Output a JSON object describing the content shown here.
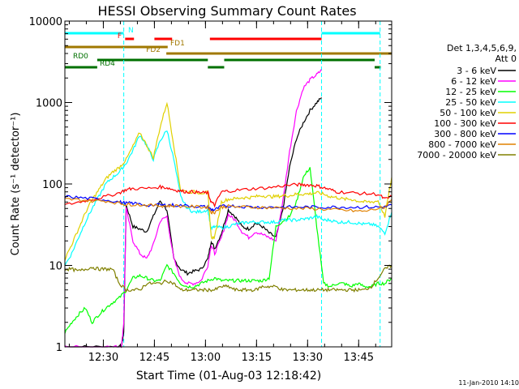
{
  "chart_data": {
    "type": "line",
    "title": "HESSI Observing Summary Count Rates",
    "xlabel": "Start Time (01-Aug-03 12:18:42)",
    "ylabel": "Count Rate (s⁻¹ detector⁻¹)",
    "yscale": "log",
    "ylim": [
      1,
      10000
    ],
    "xlim_minutes": [
      0,
      96
    ],
    "x_ticks": [
      {
        "label": "12:30",
        "minute": 11.3
      },
      {
        "label": "12:45",
        "minute": 26.3
      },
      {
        "label": "13:00",
        "minute": 41.3
      },
      {
        "label": "13:15",
        "minute": 56.3
      },
      {
        "label": "13:30",
        "minute": 71.3
      },
      {
        "label": "13:45",
        "minute": 86.3
      }
    ],
    "y_tick_labels": [
      "1",
      "10",
      "100",
      "1000",
      "10000"
    ],
    "y_tick_values": [
      1,
      10,
      100,
      1000,
      10000
    ],
    "legend_header": [
      "Det 1,3,4,5,6,9,",
      "Att 0"
    ],
    "legend_position": "right",
    "timestamp": "11-Jan-2010 14:10",
    "vertical_markers_minutes": [
      17.3,
      75.4,
      92.6
    ],
    "flag_bars": [
      {
        "label": "N",
        "color": "#00ffff",
        "row": 0,
        "segments": [
          [
            0,
            17.3
          ],
          [
            75.4,
            92.6
          ]
        ]
      },
      {
        "label": "F",
        "color": "#ff0000",
        "row": 1,
        "segments": [
          [
            17.7,
            20.3
          ],
          [
            26.3,
            31.5
          ],
          [
            42.6,
            75.4
          ]
        ]
      },
      {
        "label": "FD1",
        "color": "#a07800",
        "row": 2,
        "segments": [
          [
            0,
            30.2
          ]
        ]
      },
      {
        "label": "FD2",
        "color": "#a07800",
        "row": 3,
        "segments": [
          [
            29.8,
            96
          ]
        ]
      },
      {
        "label": "RD0",
        "color": "#007000",
        "row": 4,
        "segments": [
          [
            9.5,
            42.0
          ],
          [
            46.8,
            91.0
          ]
        ]
      },
      {
        "label": "RD4",
        "color": "#007000",
        "row": 5,
        "segments": [
          [
            0,
            9.5
          ],
          [
            42.0,
            46.8
          ],
          [
            91.0,
            92.8
          ]
        ]
      }
    ],
    "series": [
      {
        "name": "3 - 6 keV",
        "color": "#000000",
        "x": [
          0,
          5,
          10,
          15,
          16.6,
          17.3,
          18,
          20,
          22,
          24,
          26,
          28,
          30,
          32,
          34,
          36,
          38,
          40,
          42,
          43,
          44,
          46,
          48,
          50,
          52,
          54,
          56,
          58,
          60,
          62,
          64,
          66,
          68,
          70,
          72,
          74,
          75.4
        ],
        "y": [
          1,
          1,
          1,
          1,
          1,
          1.5,
          55,
          30,
          28,
          26,
          40,
          62,
          48,
          12,
          9,
          8,
          8.5,
          9,
          12,
          20,
          16,
          25,
          48,
          40,
          30,
          28,
          33,
          30,
          25,
          22,
          48,
          160,
          360,
          560,
          800,
          1000,
          1150
        ]
      },
      {
        "name": "6 - 12 keV",
        "color": "#ff00ff",
        "x": [
          0,
          5,
          10,
          15,
          16.6,
          17.3,
          18,
          20,
          22,
          24,
          26,
          28,
          30,
          32,
          34,
          36,
          38,
          40,
          42,
          43,
          44,
          46,
          48,
          50,
          52,
          54,
          56,
          58,
          60,
          62,
          64,
          66,
          68,
          70,
          72,
          74,
          75.4
        ],
        "y": [
          1,
          1,
          1,
          1,
          1,
          2,
          50,
          20,
          14,
          12,
          18,
          35,
          40,
          12,
          7,
          6,
          6,
          6.5,
          10,
          18,
          14,
          22,
          42,
          36,
          26,
          22,
          26,
          24,
          22,
          20,
          60,
          250,
          780,
          1500,
          1900,
          2200,
          2500
        ]
      },
      {
        "name": "12 - 25 keV",
        "color": "#00ff00",
        "x": [
          0,
          2,
          4,
          6,
          8,
          10,
          12,
          14,
          16,
          18,
          20,
          22,
          24,
          26,
          28,
          30,
          32,
          34,
          36,
          38,
          40,
          42,
          44,
          46,
          48,
          50,
          52,
          54,
          56,
          58,
          60,
          62,
          64,
          66,
          68,
          70,
          72,
          74,
          76,
          78,
          80,
          82,
          84,
          86,
          88,
          90,
          92,
          94,
          96
        ],
        "y": [
          1.5,
          2,
          2.5,
          3,
          2,
          2.5,
          3,
          3.5,
          4,
          5,
          7,
          7.5,
          7,
          6.5,
          6.5,
          10,
          8,
          6,
          5.5,
          5.5,
          6,
          6.5,
          7,
          6.5,
          6.5,
          6.5,
          6.5,
          6.5,
          6.5,
          6.5,
          7,
          30,
          35,
          40,
          60,
          120,
          160,
          30,
          6,
          5.5,
          6,
          6,
          5.5,
          6,
          5.5,
          5.5,
          6,
          6,
          7
        ]
      },
      {
        "name": "25 - 50 keV",
        "color": "#00ffff",
        "x": [
          0,
          2,
          4,
          6,
          8,
          10,
          12,
          14,
          16,
          18,
          20,
          22,
          24,
          26,
          28,
          30,
          32,
          34,
          36,
          38,
          40,
          42,
          43,
          44,
          46,
          48,
          50,
          52,
          54,
          56,
          58,
          60,
          62,
          64,
          66,
          68,
          70,
          72,
          74,
          76,
          78,
          80,
          82,
          84,
          86,
          88,
          90,
          92,
          94,
          96
        ],
        "y": [
          10,
          14,
          22,
          34,
          50,
          70,
          100,
          120,
          140,
          180,
          260,
          400,
          300,
          200,
          340,
          460,
          200,
          70,
          50,
          45,
          46,
          48,
          28,
          30,
          29,
          30,
          32,
          33,
          34,
          34,
          34,
          34,
          34,
          36,
          36,
          36,
          37,
          38,
          40,
          36,
          36,
          34,
          34,
          34,
          33,
          32,
          32,
          30,
          25,
          45
        ]
      },
      {
        "name": "50 - 100 keV",
        "color": "#e0d000",
        "x": [
          0,
          2,
          4,
          6,
          8,
          10,
          12,
          14,
          16,
          18,
          20,
          22,
          24,
          26,
          28,
          30,
          32,
          34,
          36,
          38,
          40,
          42,
          43,
          44,
          46,
          48,
          50,
          52,
          54,
          56,
          58,
          60,
          62,
          64,
          66,
          68,
          70,
          72,
          74,
          76,
          78,
          80,
          82,
          84,
          86,
          88,
          90,
          92,
          94,
          96
        ],
        "y": [
          12,
          18,
          28,
          44,
          64,
          85,
          115,
          140,
          160,
          200,
          290,
          430,
          300,
          210,
          500,
          1000,
          300,
          85,
          80,
          80,
          78,
          78,
          22,
          22,
          60,
          65,
          66,
          68,
          68,
          70,
          72,
          70,
          70,
          72,
          72,
          75,
          75,
          76,
          78,
          75,
          70,
          68,
          65,
          65,
          62,
          60,
          60,
          62,
          40,
          120
        ]
      },
      {
        "name": "100 - 300 keV",
        "color": "#ff0000",
        "x": [
          0,
          4,
          8,
          12,
          16,
          18,
          20,
          24,
          28,
          30,
          32,
          34,
          36,
          38,
          40,
          42,
          43,
          44,
          46,
          48,
          52,
          56,
          60,
          64,
          68,
          70,
          72,
          74,
          76,
          78,
          80,
          84,
          88,
          92,
          94,
          96
        ],
        "y": [
          55,
          60,
          65,
          70,
          78,
          85,
          88,
          88,
          92,
          90,
          85,
          82,
          80,
          80,
          78,
          78,
          60,
          55,
          80,
          82,
          85,
          88,
          90,
          95,
          98,
          98,
          97,
          95,
          90,
          85,
          80,
          78,
          76,
          75,
          65,
          70
        ]
      },
      {
        "name": "300 - 800 keV",
        "color": "#0000ff",
        "x": [
          0,
          4,
          8,
          12,
          16,
          18,
          20,
          24,
          28,
          30,
          32,
          36,
          40,
          42,
          43,
          44,
          46,
          48,
          52,
          56,
          60,
          64,
          68,
          72,
          76,
          80,
          84,
          88,
          92,
          94,
          96
        ],
        "y": [
          70,
          68,
          66,
          64,
          60,
          58,
          58,
          55,
          55,
          55,
          55,
          54,
          53,
          52,
          48,
          48,
          53,
          54,
          53,
          52,
          52,
          52,
          52,
          52,
          52,
          52,
          52,
          52,
          52,
          52,
          55
        ]
      },
      {
        "name": "800 - 7000 keV",
        "color": "#e08000",
        "x": [
          0,
          4,
          8,
          12,
          16,
          18,
          20,
          24,
          28,
          30,
          32,
          36,
          40,
          42,
          43,
          44,
          46,
          48,
          52,
          56,
          60,
          64,
          68,
          72,
          76,
          80,
          84,
          88,
          92,
          94,
          96
        ],
        "y": [
          65,
          64,
          62,
          62,
          58,
          56,
          56,
          55,
          54,
          54,
          54,
          53,
          52,
          52,
          45,
          45,
          52,
          53,
          52,
          52,
          51,
          51,
          50,
          50,
          49,
          48,
          47,
          46,
          50,
          52,
          65
        ]
      },
      {
        "name": "7000 - 20000 keV",
        "color": "#808000",
        "x": [
          0,
          2,
          4,
          6,
          8,
          10,
          12,
          14,
          16,
          18,
          20,
          22,
          24,
          26,
          28,
          30,
          32,
          34,
          36,
          38,
          40,
          42,
          44,
          46,
          48,
          50,
          52,
          54,
          56,
          58,
          60,
          62,
          64,
          66,
          68,
          70,
          72,
          74,
          76,
          78,
          80,
          82,
          84,
          86,
          88,
          90,
          92,
          94,
          96
        ],
        "y": [
          9,
          9,
          8.5,
          9,
          9.5,
          9,
          9,
          9,
          6,
          5,
          5,
          5,
          6,
          6,
          6,
          6.5,
          6,
          5,
          5,
          5,
          5,
          5,
          5,
          5.5,
          5.5,
          5,
          5,
          5,
          5,
          5.5,
          5.5,
          5.5,
          5,
          5,
          5,
          5,
          5,
          5,
          5,
          5,
          5,
          5,
          5,
          5,
          5,
          5.5,
          7,
          9,
          10
        ]
      }
    ]
  }
}
